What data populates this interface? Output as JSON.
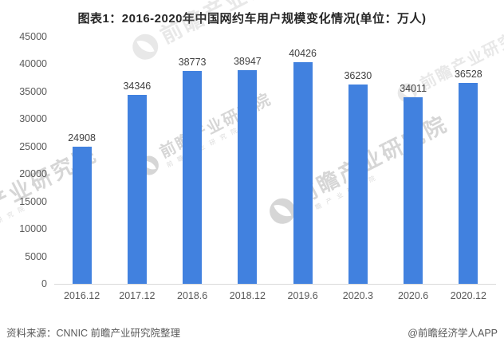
{
  "title": "图表1：2016-2020年中国网约车用户规模变化情况(单位：万人)",
  "chart_data": {
    "type": "bar",
    "title": "图表1：2016-2020年中国网约车用户规模变化情况(单位：万人)",
    "categories": [
      "2016.12",
      "2017.12",
      "2018.6",
      "2018.12",
      "2019.6",
      "2020.3",
      "2020.6",
      "2020.12"
    ],
    "values": [
      24908,
      34346,
      38773,
      38947,
      40426,
      36230,
      34011,
      36528
    ],
    "unit": "万人",
    "xlabel": "",
    "ylabel": "",
    "ylim": [
      0,
      45000
    ],
    "ytick_step": 5000,
    "grid": false,
    "legend": false,
    "value_labels": true,
    "bar_color": "#4181DF"
  },
  "footer": {
    "source": "资料来源：CNNIC 前瞻产业研究院整理",
    "brand": "@前瞻经济学人APP"
  },
  "watermark": {
    "text": "前瞻产业研究院",
    "subtext": "前瞻产业研究院",
    "color": "#9b9b9b"
  },
  "colors": {
    "bar": "#4181DF",
    "title_text": "#262626",
    "axis_text": "#595959",
    "value_label_text": "#404040",
    "axis_line": "#d9d9d9",
    "background": "#ffffff"
  }
}
